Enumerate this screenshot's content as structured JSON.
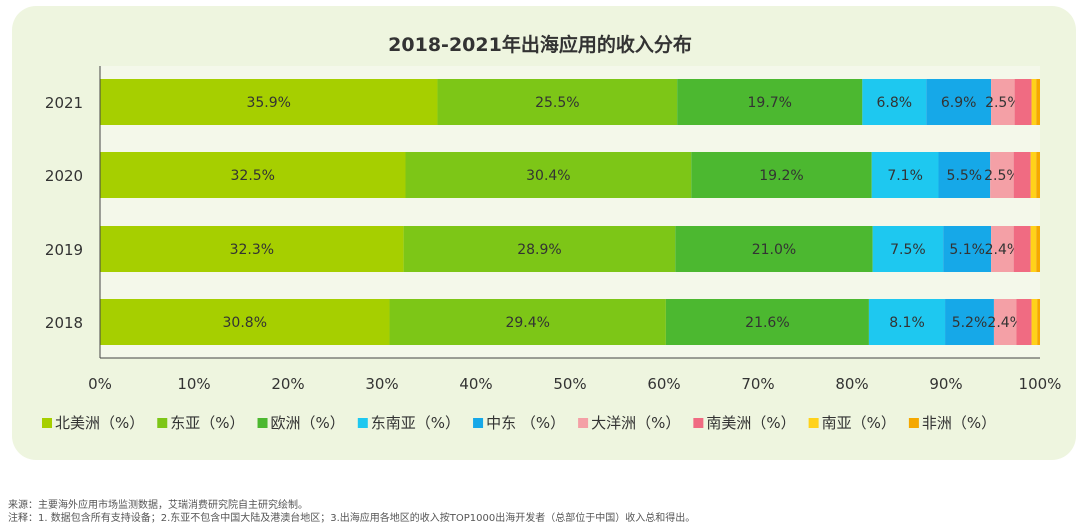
{
  "title": "2018-2021年出海应用的收入分布",
  "chart_data": {
    "type": "bar",
    "orientation": "horizontal",
    "stacked": true,
    "title": "2018-2021年出海应用的收入分布",
    "categories": [
      "2021",
      "2020",
      "2019",
      "2018"
    ],
    "xlim": [
      0,
      100
    ],
    "x_ticks": [
      "0%",
      "10%",
      "20%",
      "30%",
      "40%",
      "50%",
      "60%",
      "70%",
      "80%",
      "90%",
      "100%"
    ],
    "legend_position": "bottom",
    "series": [
      {
        "name": "北美洲（%）",
        "color": "#a6cf00",
        "values": [
          35.9,
          32.5,
          32.3,
          30.8
        ]
      },
      {
        "name": "东亚（%）",
        "color": "#7dc617",
        "values": [
          25.5,
          30.4,
          28.9,
          29.4
        ]
      },
      {
        "name": "欧洲（%）",
        "color": "#4cb830",
        "values": [
          19.7,
          19.2,
          21.0,
          21.6
        ]
      },
      {
        "name": "东南亚（%）",
        "color": "#1ec8f0",
        "values": [
          6.8,
          7.1,
          7.5,
          8.1
        ]
      },
      {
        "name": "中东 （%）",
        "color": "#16a8e8",
        "values": [
          6.9,
          5.5,
          5.1,
          5.2
        ]
      },
      {
        "name": "大洋洲（%）",
        "color": "#f4a0a6",
        "values": [
          2.5,
          2.5,
          2.4,
          2.4
        ]
      },
      {
        "name": "南美洲（%）",
        "color": "#f06b82",
        "values": [
          1.8,
          1.8,
          1.8,
          1.6
        ]
      },
      {
        "name": "南亚（%）",
        "color": "#ffd21a",
        "values": [
          0.5,
          0.6,
          0.6,
          0.6
        ]
      },
      {
        "name": "非洲（%）",
        "color": "#f5a800",
        "values": [
          0.4,
          0.4,
          0.4,
          0.3
        ]
      }
    ],
    "labeled_series_count": 6,
    "data_labels": [
      [
        "35.9%",
        "25.5%",
        "19.7%",
        "6.8%",
        "6.9%",
        "2.5%"
      ],
      [
        "32.5%",
        "30.4%",
        "19.2%",
        "7.1%",
        "5.5%",
        "2.5%"
      ],
      [
        "32.3%",
        "28.9%",
        "21.0%",
        "7.5%",
        "5.1%",
        "2.4%"
      ],
      [
        "30.8%",
        "29.4%",
        "21.6%",
        "8.1%",
        "5.2%",
        "2.4%"
      ]
    ]
  },
  "footer": {
    "source": "来源：主要海外应用市场监测数据，艾瑞消费研究院自主研究绘制。",
    "notes": "注释：1. 数据包含所有支持设备；2.东亚不包含中国大陆及港澳台地区；3.出海应用各地区的收入按TOP1000出海开发者（总部位于中国）收入总和得出。"
  }
}
